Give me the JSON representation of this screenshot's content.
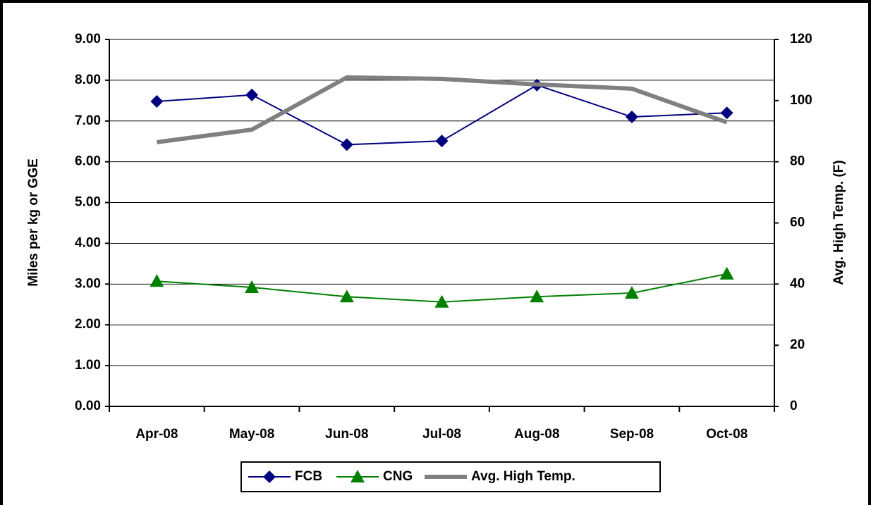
{
  "chart_data": {
    "type": "line",
    "categories": [
      "Apr-08",
      "May-08",
      "Jun-08",
      "Jul-08",
      "Aug-08",
      "Sep-08",
      "Oct-08"
    ],
    "y_label": "Miles per kg or GGE",
    "y2_label": "Avg. High Temp. (F)",
    "ylim": [
      0,
      9
    ],
    "yticks": [
      {
        "value": 0,
        "label": "0.00"
      },
      {
        "value": 1,
        "label": "1.00"
      },
      {
        "value": 2,
        "label": "2.00"
      },
      {
        "value": 3,
        "label": "3.00"
      },
      {
        "value": 4,
        "label": "4.00"
      },
      {
        "value": 5,
        "label": "5.00"
      },
      {
        "value": 6,
        "label": "6.00"
      },
      {
        "value": 7,
        "label": "7.00"
      },
      {
        "value": 8,
        "label": "8.00"
      },
      {
        "value": 9,
        "label": "9.00"
      }
    ],
    "y2lim": [
      0,
      120
    ],
    "y2ticks": [
      0,
      20,
      40,
      60,
      80,
      100,
      120
    ],
    "grid": true,
    "legend": "bottom",
    "series": [
      {
        "name": "FCB",
        "color": "#000080",
        "marker": "diamond",
        "values": [
          7.48,
          7.64,
          6.42,
          6.51,
          7.88,
          7.1,
          7.2
        ]
      },
      {
        "name": "CNG",
        "color": "#008000",
        "marker": "triangle",
        "values": [
          3.07,
          2.92,
          2.69,
          2.56,
          2.69,
          2.78,
          3.25
        ]
      },
      {
        "name": "Avg. High Temp.",
        "color": "#808080",
        "axis": "y2",
        "values": [
          86.4,
          90.5,
          107.6,
          107.1,
          105.3,
          103.9,
          92.9
        ]
      }
    ]
  }
}
